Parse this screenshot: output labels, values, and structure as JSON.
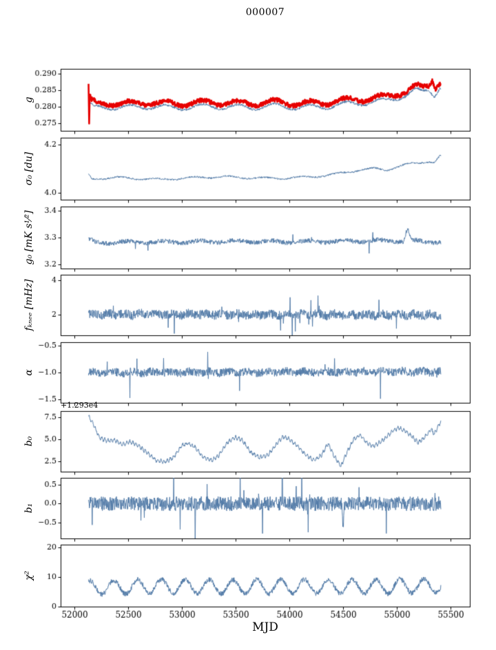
{
  "title": "000007",
  "xlabel": "MJD",
  "chart_data": {
    "type": "line",
    "grid": false,
    "legend": "none",
    "x_axis": {
      "min": 51870,
      "max": 55680,
      "ticks": [
        52000,
        52500,
        53000,
        53500,
        54000,
        54500,
        55000,
        55500
      ],
      "tick_labels": [
        "52000",
        "52500",
        "53000",
        "53500",
        "54000",
        "54500",
        "55000",
        "55500"
      ],
      "data_start": 52130,
      "data_end": 55410,
      "points": 1150
    },
    "panels": [
      {
        "label": "g",
        "ylim": [
          0.2728,
          0.2915
        ],
        "yticks": [
          0.275,
          0.28,
          0.285,
          0.29
        ],
        "ytick_labels": [
          "0.275",
          "0.280",
          "0.285",
          "0.290"
        ],
        "offset_text": "",
        "series": [
          {
            "name": "g-fit",
            "color": "#527ba8",
            "width": 1,
            "anchors_x": [
              52130,
              52180,
              52300,
              52500,
              52700,
              52900,
              53100,
              53300,
              53500,
              53700,
              53900,
              54100,
              54300,
              54450,
              54600,
              54750,
              54900,
              55000,
              55100,
              55180,
              55240,
              55300,
              55350,
              55400
            ],
            "anchors_y": [
              0.2812,
              0.2796,
              0.28,
              0.2798,
              0.2802,
              0.2797,
              0.28,
              0.2802,
              0.2799,
              0.28,
              0.2803,
              0.2798,
              0.28,
              0.2806,
              0.281,
              0.2814,
              0.2818,
              0.2828,
              0.2838,
              0.285,
              0.2844,
              0.2852,
              0.2836,
              0.2862
            ],
            "sin_amp": 0.0008,
            "sin_period": 335,
            "sin_phase": 0.6,
            "noise": 0.00035,
            "seed": 11
          },
          {
            "name": "g-raw",
            "color": "#e60000",
            "width": 2.6,
            "anchors_x": [
              52130,
              52136,
              52142,
              52150,
              52200,
              52300,
              52500,
              52700,
              52900,
              53100,
              53300,
              53500,
              53700,
              53900,
              54100,
              54300,
              54450,
              54600,
              54750,
              54900,
              55000,
              55100,
              55180,
              55240,
              55300,
              55330,
              55360,
              55400
            ],
            "anchors_y": [
              0.2868,
              0.2737,
              0.2845,
              0.2818,
              0.2809,
              0.2812,
              0.281,
              0.2814,
              0.2809,
              0.2812,
              0.2814,
              0.2811,
              0.2812,
              0.2815,
              0.281,
              0.2812,
              0.2818,
              0.2822,
              0.2826,
              0.283,
              0.284,
              0.285,
              0.2862,
              0.2856,
              0.2866,
              0.2886,
              0.2862,
              0.2876
            ],
            "sin_amp": 0.0008,
            "sin_period": 335,
            "sin_phase": 0.6,
            "noise": 0.00065,
            "seed": 12
          }
        ]
      },
      {
        "label": "σ₀ [du]",
        "ylim": [
          3.97,
          4.23
        ],
        "yticks": [
          4.0,
          4.2
        ],
        "ytick_labels": [
          "4.0",
          "4.2"
        ],
        "offset_text": "",
        "series": [
          {
            "name": "sigma0",
            "color": "#527ba8",
            "width": 1,
            "anchors_x": [
              52130,
              52160,
              52250,
              52400,
              52600,
              52800,
              53000,
              53200,
              53400,
              53600,
              53800,
              54000,
              54200,
              54350,
              54500,
              54650,
              54800,
              54900,
              55000,
              55100,
              55200,
              55300,
              55350,
              55400
            ],
            "anchors_y": [
              4.076,
              4.056,
              4.06,
              4.063,
              4.058,
              4.055,
              4.06,
              4.064,
              4.066,
              4.062,
              4.06,
              4.061,
              4.066,
              4.072,
              4.082,
              4.095,
              4.1,
              4.094,
              4.108,
              4.118,
              4.124,
              4.132,
              4.126,
              4.152
            ],
            "sin_amp": 0.004,
            "sin_period": 335,
            "sin_phase": 2.2,
            "noise": 0.0035,
            "seed": 21
          }
        ]
      },
      {
        "label": "g₀ [mK s¹⁄²]",
        "ylim": [
          3.185,
          3.415
        ],
        "yticks": [
          3.2,
          3.3,
          3.4
        ],
        "ytick_labels": [
          "3.2",
          "3.3",
          "3.4"
        ],
        "offset_text": "",
        "series": [
          {
            "name": "g0",
            "color": "#527ba8",
            "width": 1,
            "anchors_x": [
              52130,
              52200,
              52600,
              53000,
              53500,
              54000,
              54500,
              54800,
              55060,
              55100,
              55140,
              55250,
              55400
            ],
            "anchors_y": [
              3.293,
              3.281,
              3.284,
              3.283,
              3.286,
              3.284,
              3.286,
              3.288,
              3.287,
              3.335,
              3.287,
              3.285,
              3.284
            ],
            "sin_amp": 0.004,
            "sin_period": 335,
            "sin_phase": 1.0,
            "noise": 0.0085,
            "spikes": {
              "prob": 0.006,
              "scale": 2.0
            },
            "seed": 31
          }
        ]
      },
      {
        "label": "fₖₙₑₑ [mHz]",
        "ylim": [
          0.8,
          4.3
        ],
        "yticks": [
          2,
          4
        ],
        "ytick_labels": [
          "2",
          "4"
        ],
        "offset_text": "",
        "series": [
          {
            "name": "fknee",
            "color": "#527ba8",
            "width": 1,
            "anchors_x": [
              52130,
              55410
            ],
            "anchors_y": [
              2.02,
              1.98
            ],
            "sin_amp": 0.06,
            "sin_period": 150,
            "sin_phase": 0,
            "noise": 0.27,
            "spikes": {
              "prob": 0.015,
              "scale": 2.2
            },
            "seed": 41
          }
        ]
      },
      {
        "label": "α",
        "ylim": [
          -1.56,
          -0.44
        ],
        "yticks": [
          -1.5,
          -1.0,
          -0.5
        ],
        "ytick_labels": [
          "−1.5",
          "−1.0",
          "−0.5"
        ],
        "offset_text": "",
        "series": [
          {
            "name": "alpha",
            "color": "#527ba8",
            "width": 1,
            "anchors_x": [
              52130,
              55410
            ],
            "anchors_y": [
              -1.0,
              -0.985
            ],
            "sin_amp": 0.018,
            "sin_period": 180,
            "sin_phase": 0,
            "noise": 0.075,
            "spikes": {
              "prob": 0.01,
              "scale": 2.4
            },
            "seed": 51
          }
        ]
      },
      {
        "label": "b₀",
        "ylim": [
          1.3,
          8.2
        ],
        "yticks": [
          2.5,
          5.0,
          7.5
        ],
        "ytick_labels": [
          "2.5",
          "5.0",
          "7.5"
        ],
        "offset_text": "+1.293e4",
        "series": [
          {
            "name": "b0",
            "color": "#527ba8",
            "width": 1,
            "anchors_x": [
              52130,
              52170,
              52230,
              52300,
              52370,
              52450,
              52520,
              52600,
              52680,
              52760,
              52840,
              52920,
              53000,
              53060,
              53120,
              53200,
              53280,
              53340,
              53420,
              53500,
              53560,
              53640,
              53720,
              53800,
              53880,
              53940,
              54000,
              54080,
              54160,
              54240,
              54300,
              54360,
              54420,
              54480,
              54540,
              54600,
              54660,
              54720,
              54780,
              54840,
              54900,
              54960,
              55020,
              55080,
              55140,
              55200,
              55260,
              55320,
              55350,
              55380,
              55410
            ],
            "anchors_y": [
              7.6,
              6.8,
              5.2,
              4.8,
              4.9,
              4.4,
              4.7,
              4.2,
              3.4,
              2.6,
              2.4,
              2.9,
              4.3,
              4.5,
              4.1,
              2.9,
              2.6,
              3.1,
              4.6,
              5.2,
              4.9,
              3.5,
              2.9,
              3.2,
              4.4,
              5.3,
              5.0,
              4.2,
              3.1,
              2.6,
              3.2,
              4.5,
              3.0,
              1.9,
              3.6,
              5.0,
              5.5,
              4.6,
              4.2,
              4.6,
              5.2,
              5.9,
              6.3,
              5.9,
              5.3,
              4.6,
              5.2,
              6.1,
              5.6,
              6.3,
              7.0
            ],
            "sin_amp": 0.18,
            "sin_period": 29,
            "sin_phase": 0,
            "noise": 0.12,
            "seed": 61
          }
        ]
      },
      {
        "label": "b₁",
        "ylim": [
          -0.92,
          0.68
        ],
        "yticks": [
          -0.5,
          0.0,
          0.5
        ],
        "ytick_labels": [
          "−0.5",
          "0.0",
          "0.5"
        ],
        "offset_text": "",
        "series": [
          {
            "name": "b1",
            "color": "#527ba8",
            "width": 1,
            "anchors_x": [
              52130,
              54485,
              54500,
              54515,
              55410
            ],
            "anchors_y": [
              0.0,
              0.0,
              -0.58,
              0.0,
              0.0
            ],
            "sin_amp": 0.0,
            "sin_period": 100,
            "sin_phase": 0,
            "noise": 0.19,
            "spikes": {
              "prob": 0.015,
              "scale": 2.0
            },
            "seed": 71
          }
        ]
      },
      {
        "label": "χ²",
        "ylim": [
          0,
          21
        ],
        "yticks": [
          0,
          10,
          20
        ],
        "ytick_labels": [
          "0",
          "10",
          "20"
        ],
        "offset_text": "",
        "series": [
          {
            "name": "chi2",
            "color": "#527ba8",
            "width": 1,
            "anchors_x": [
              52130,
              52800,
              53500,
              54200,
              54900,
              55410
            ],
            "anchors_y": [
              6.4,
              6.9,
              6.7,
              6.9,
              6.8,
              7.1
            ],
            "sin_amp": 2.4,
            "sin_period": 222,
            "sin_phase": 1.2,
            "noise": 0.85,
            "clamp_min": 3.2,
            "seed": 81
          }
        ]
      }
    ]
  }
}
